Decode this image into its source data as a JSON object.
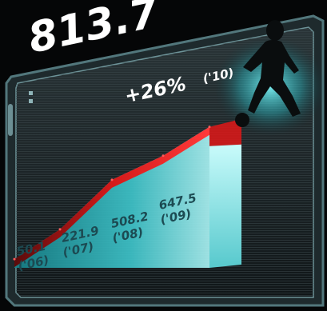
{
  "headline_value": "813.7",
  "growth_label": "+26%",
  "growth_year": "('10)",
  "colors": {
    "background": "#050607",
    "accent_red": "#e01818",
    "panel_cyan": "#2fb5bc",
    "label_text": "#1c4a52"
  },
  "chart_data": {
    "type": "area",
    "title": "",
    "xlabel": "",
    "ylabel": "",
    "categories": [
      "'06",
      "'07",
      "'08",
      "'09",
      "'10"
    ],
    "values": [
      50.1,
      221.9,
      508.2,
      647.5,
      813.7
    ],
    "ylim": [
      0,
      900
    ],
    "grid": false,
    "legend": "none",
    "data_labels": [
      {
        "value": "50.1",
        "year": "('06)"
      },
      {
        "value": "221.9",
        "year": "('07)"
      },
      {
        "value": "508.2",
        "year": "('08)"
      },
      {
        "value": "647.5",
        "year": "('09)"
      }
    ]
  }
}
